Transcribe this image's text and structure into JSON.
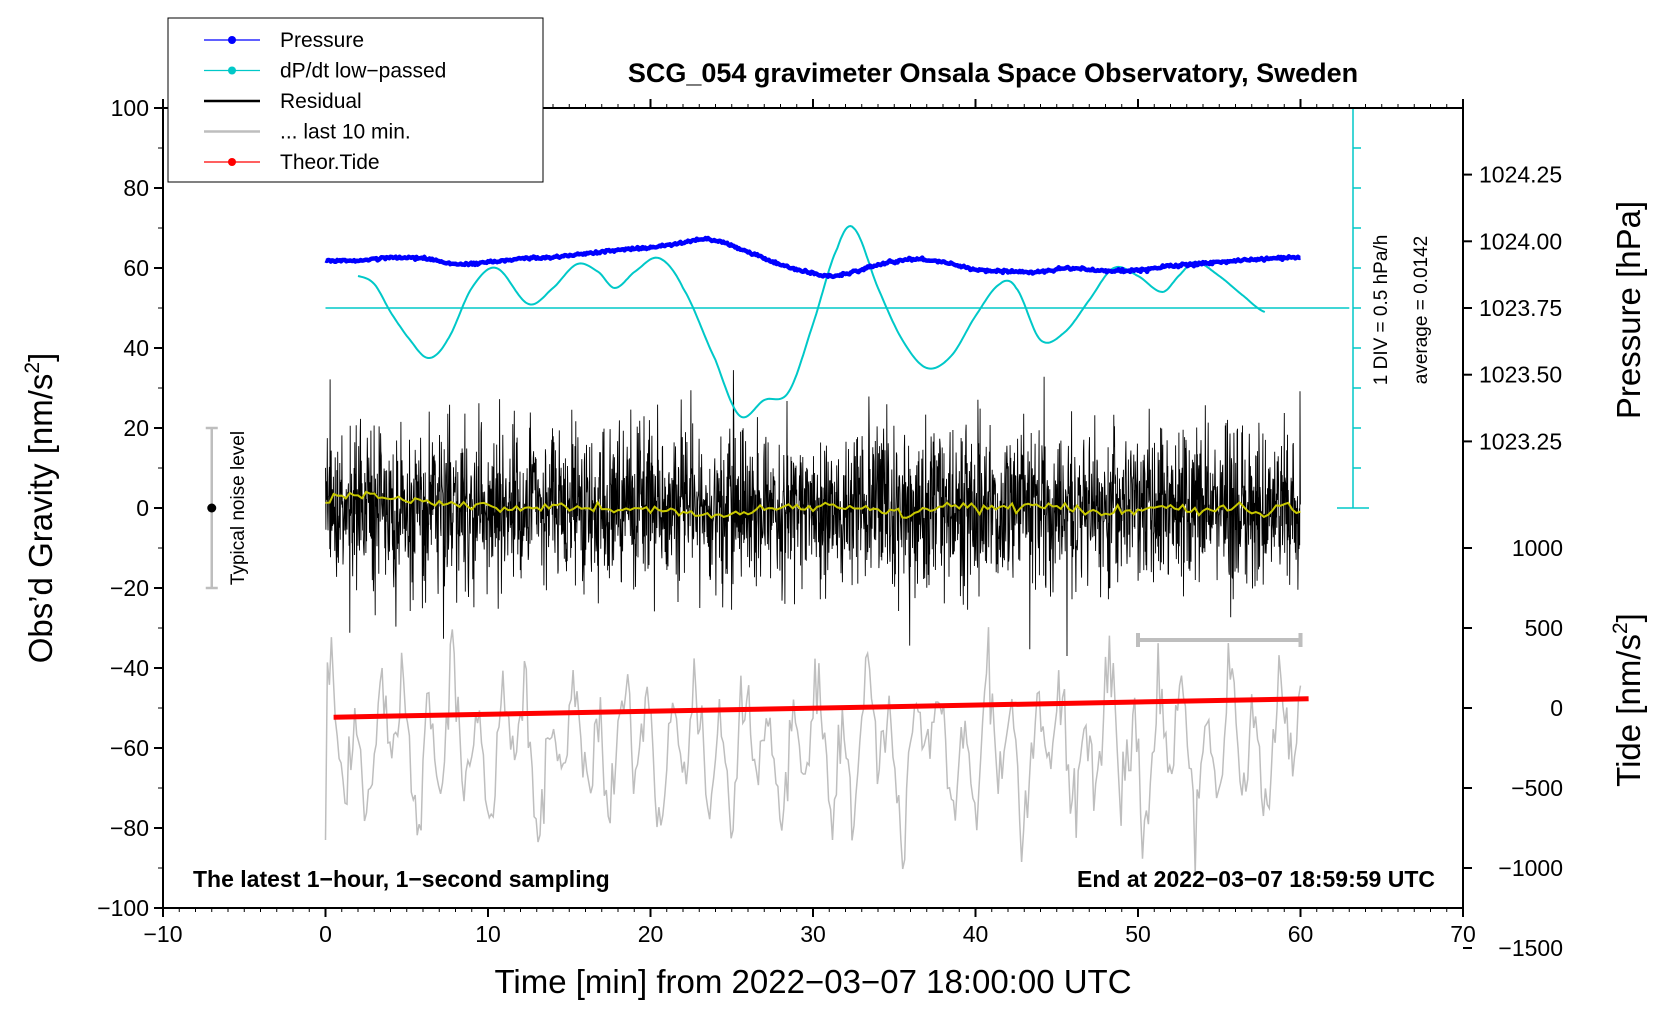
{
  "chart_data": {
    "type": "line",
    "title": "SCG_054 gravimeter Onsala Space Observatory, Sweden",
    "xlabel": "Time [min] from 2022−03−07 18:00:00 UTC",
    "ylabel_left": "Obs’d Gravity [nm/s",
    "ylabel_left_sup": "2",
    "ylabel_left_close": "]",
    "ylabel_right_pressure": "Pressure [hPa]",
    "ylabel_right_tide": "Tide [nm/s",
    "ylabel_right_tide_sup": "2",
    "ylabel_right_tide_close": "]",
    "xlim": [
      -10,
      70
    ],
    "ylim": [
      -100,
      100
    ],
    "x_ticks": [
      -10,
      0,
      10,
      20,
      30,
      40,
      50,
      60,
      70
    ],
    "x_tick_labels": [
      "−10",
      "0",
      "10",
      "20",
      "30",
      "40",
      "50",
      "60",
      "70"
    ],
    "y_ticks": [
      -100,
      -80,
      -60,
      -40,
      -20,
      0,
      20,
      40,
      60,
      80,
      100
    ],
    "y_tick_labels": [
      "−100",
      "−80",
      "−60",
      "−40",
      "−20",
      "0",
      "20",
      "40",
      "60",
      "80",
      "100"
    ],
    "pressure_ticks": [
      1023.25,
      1023.5,
      1023.75,
      1024.0,
      1024.25
    ],
    "pressure_tick_labels": [
      "1023.25",
      "1023.50",
      "1023.75",
      "1024.00",
      "1024.25"
    ],
    "pressure_map": {
      "ref_value": 1023.75,
      "ref_gravity": 50,
      "gravity_per_hpa": 66.7
    },
    "tide_ticks": [
      -1500,
      -1000,
      -500,
      0,
      500,
      1000
    ],
    "tide_tick_labels": [
      "−1500",
      "−1000",
      "−500",
      "0",
      "500",
      "1000"
    ],
    "tide_map": {
      "gravity_per_unit": 0.04,
      "offset": -50
    },
    "legend": [
      {
        "label": "Pressure",
        "color": "#0000ff",
        "marker": true
      },
      {
        "label": "dP/dt low−passed",
        "color": "#00c8c8",
        "marker": true
      },
      {
        "label": "Residual",
        "color": "#000000",
        "marker": false
      },
      {
        "label": "... last 10 min.",
        "color": "#bebebe",
        "marker": false
      },
      {
        "label": "Theor.Tide",
        "color": "#ff0000",
        "marker": true
      }
    ],
    "series": [
      {
        "name": "Pressure",
        "color": "#0000ff",
        "x": [
          0,
          2,
          4,
          6,
          8,
          10,
          12,
          14,
          16,
          18,
          20,
          22,
          23,
          24,
          26,
          28,
          30,
          31,
          32,
          34,
          36,
          38,
          40,
          42,
          44,
          46,
          48,
          50,
          52,
          54,
          56,
          58,
          60
        ],
        "values": [
          61.8,
          61.8,
          62.6,
          62.4,
          61,
          61.4,
          62.4,
          62.6,
          63.6,
          64.5,
          65.2,
          66.3,
          67,
          66.8,
          64,
          60.8,
          58.7,
          58,
          58.6,
          60.8,
          62.1,
          61.5,
          59.7,
          59.1,
          59.1,
          60,
          59.2,
          59.5,
          60.5,
          61.1,
          61.8,
          62.4,
          62.7
        ]
      },
      {
        "name": "dP/dt low−passed",
        "color": "#00c8c8",
        "x": [
          2,
          3,
          4,
          5,
          6.3,
          7.5,
          9,
          10.5,
          12.5,
          14,
          15.5,
          16.8,
          17.8,
          19,
          20.5,
          22,
          24,
          25.5,
          27,
          28.5,
          30,
          31.5,
          32.5,
          34,
          35.5,
          37,
          38.5,
          40,
          41.5,
          42.5,
          44,
          45.5,
          47,
          48.5,
          50,
          51.5,
          52.5,
          53.5,
          55,
          56.5,
          57.8
        ],
        "values": [
          58,
          56,
          49,
          43,
          37.5,
          42,
          55,
          60,
          51,
          55,
          61,
          59,
          55,
          59,
          62.5,
          55,
          37,
          23,
          27,
          29,
          46,
          65,
          70,
          55,
          42,
          35,
          38,
          48,
          56,
          55,
          42,
          44,
          52,
          60,
          58,
          54,
          58,
          61.5,
          58,
          53,
          49
        ]
      },
      {
        "name": "dP/dt average",
        "color": "#00c8c8",
        "x": [
          0,
          63
        ],
        "values": [
          50,
          50
        ]
      },
      {
        "name": "Residual",
        "color": "#000000",
        "x_start": 0,
        "x_end": 60,
        "level": 0,
        "amplitude_nm_s2": 13,
        "max_abs_nm_s2": 37
      },
      {
        "name": "Residual smoothed",
        "color": "#c8c800",
        "x": [
          0,
          1,
          2,
          3,
          4,
          5,
          6,
          8,
          10,
          12,
          14,
          16,
          18,
          20,
          22,
          24,
          26,
          28,
          30,
          32,
          34,
          36,
          38,
          40,
          42,
          44,
          46,
          48,
          50,
          52,
          54,
          56,
          58,
          59,
          60
        ],
        "values": [
          2,
          3,
          3.5,
          3,
          2.5,
          2,
          1.5,
          1,
          0.5,
          0,
          0.5,
          0,
          0,
          0,
          -1,
          -2,
          -1,
          0,
          0.5,
          0,
          0,
          -1.5,
          0.5,
          0,
          0,
          0.5,
          0,
          -1,
          0,
          0,
          -0.5,
          0,
          -1,
          1,
          -1
        ]
      },
      {
        "name": "... last 10 min.",
        "color": "#bebebe",
        "x_start": 0,
        "x_end": 60,
        "level": -60,
        "amplitude_nm_s2": 13,
        "min_nm_s2": -98,
        "max_nm_s2": -27
      },
      {
        "name": "Theor.Tide",
        "color": "#ff0000",
        "x": [
          0.5,
          60.5
        ],
        "values": [
          -52.3,
          -47.7
        ]
      },
      {
        "name": "Typical noise level",
        "color": "#bebebe",
        "x": [
          -7
        ],
        "values": [
          0
        ],
        "range": [
          -20,
          20
        ]
      },
      {
        "name": "10-minute bar",
        "color": "#bebebe",
        "x": [
          50,
          60
        ],
        "values": [
          -33,
          -33
        ]
      }
    ],
    "annotations": {
      "noise_label": "Typical noise level",
      "div_label": "1 DIV = 0.5 hPa/h",
      "average_label": "average = 0.0142",
      "sampling_note": "The latest 1−hour, 1−second sampling",
      "end_note": "End at 2022−03−07 18:59:59 UTC"
    }
  }
}
